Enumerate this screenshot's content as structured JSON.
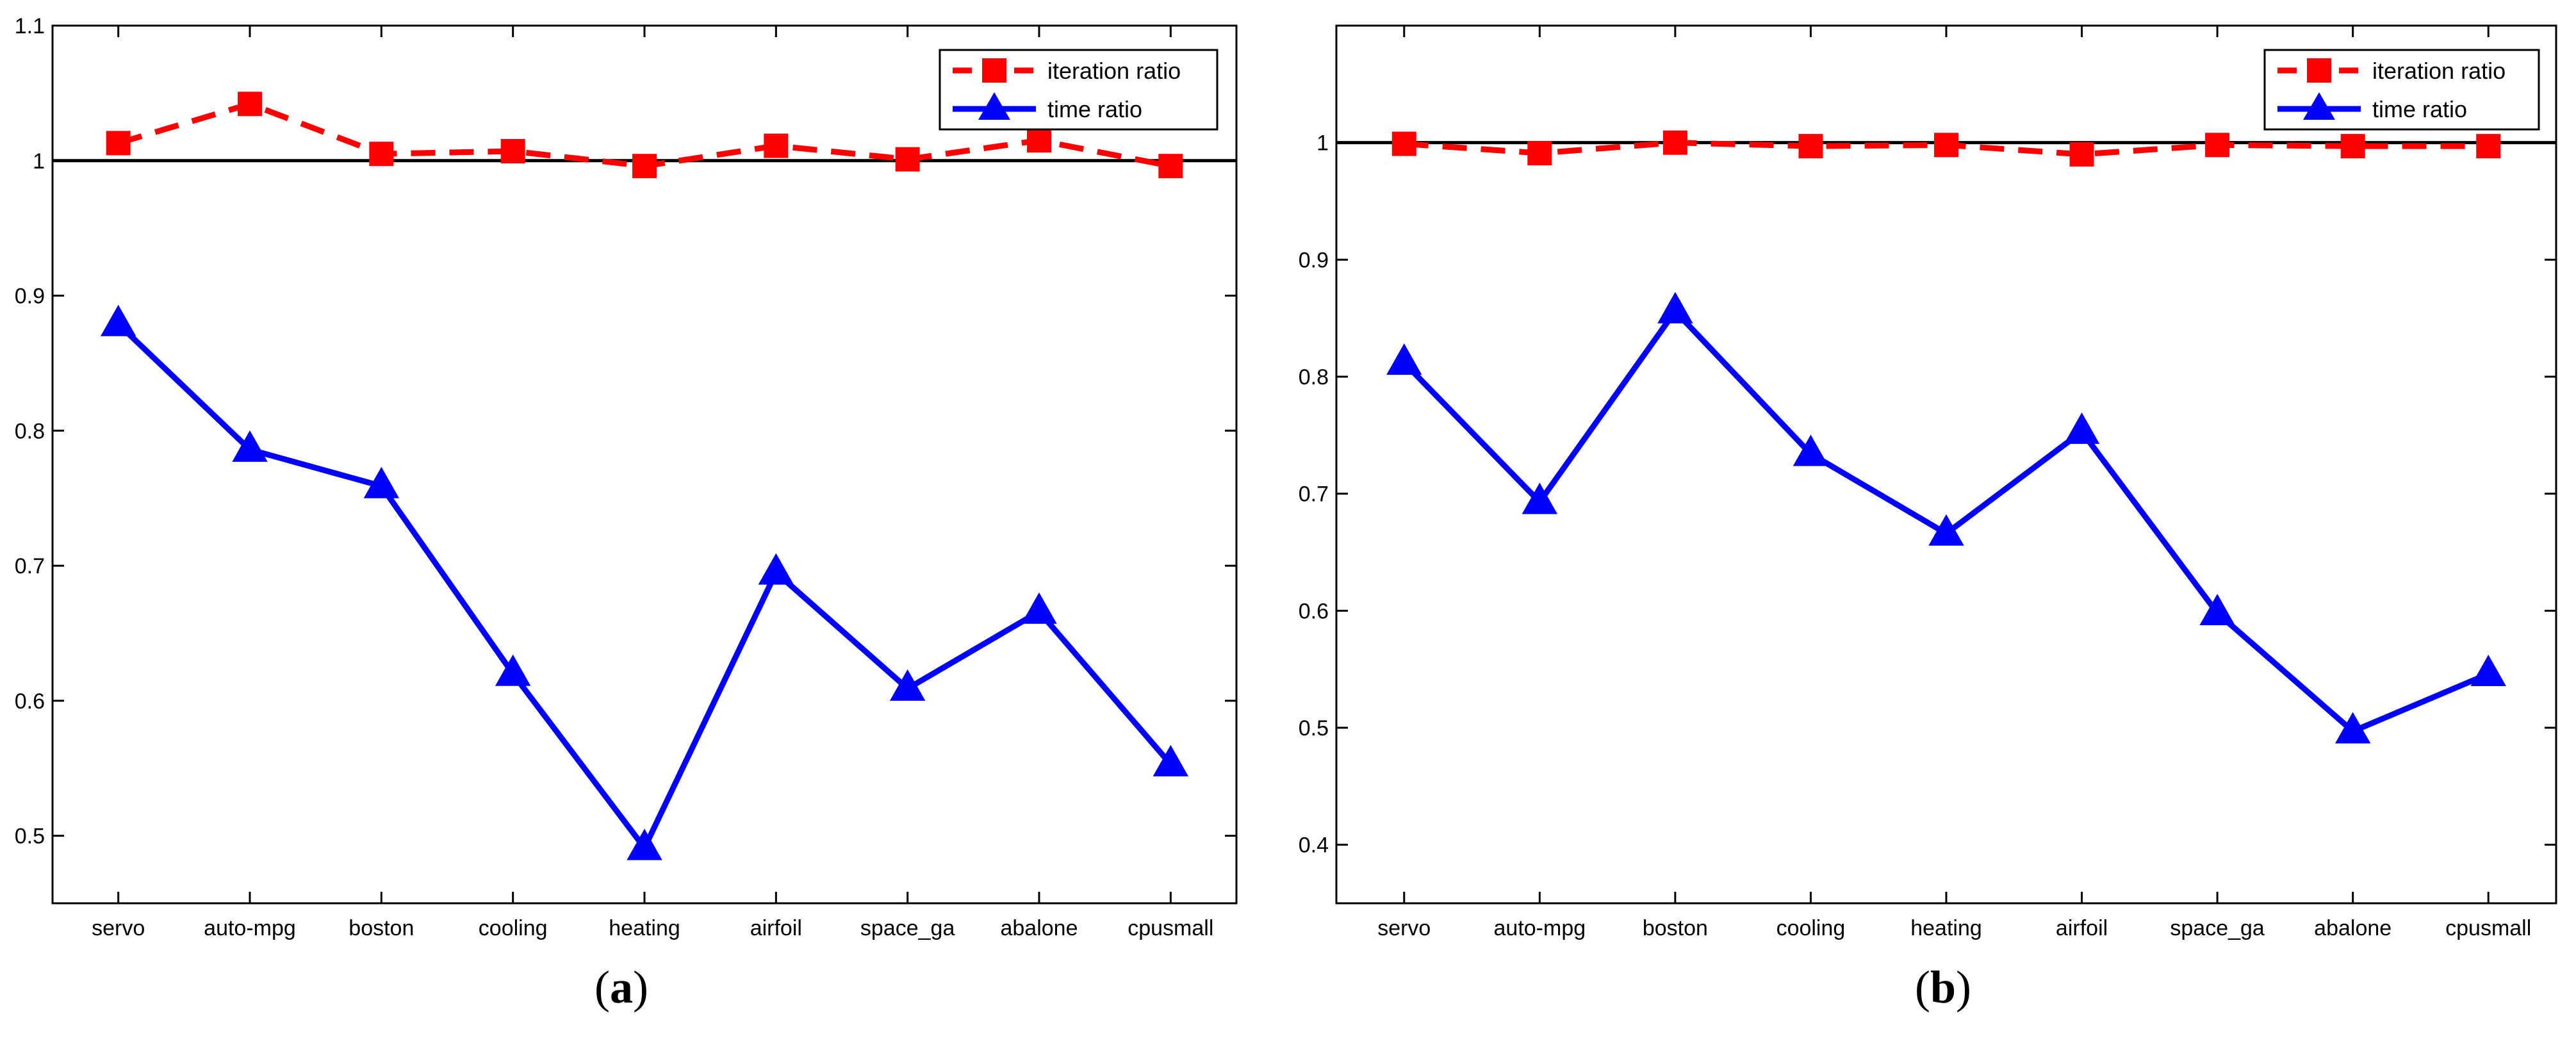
{
  "chart_data": [
    {
      "type": "line",
      "panel": "a",
      "categories": [
        "servo",
        "auto-mpg",
        "boston",
        "cooling",
        "heating",
        "airfoil",
        "space_ga",
        "abalone",
        "cpusmall"
      ],
      "ylim": [
        0.45,
        1.1
      ],
      "yticks": [
        0.5,
        0.6,
        0.7,
        0.8,
        0.9,
        1,
        1.1
      ],
      "ytick_labels": [
        "0.5",
        "0.6",
        "0.7",
        "0.8",
        "0.9",
        "1",
        "1.1"
      ],
      "reference_line": 1,
      "series": [
        {
          "name": "iteration ratio",
          "color": "#ff0000",
          "style": "dashed",
          "marker": "square",
          "values": [
            1.013,
            1.042,
            1.005,
            1.007,
            0.996,
            1.011,
            1.001,
            1.015,
            0.996
          ]
        },
        {
          "name": "time ratio",
          "color": "#0000ff",
          "style": "solid",
          "marker": "triangle",
          "values": [
            0.879,
            0.786,
            0.759,
            0.62,
            0.491,
            0.695,
            0.609,
            0.666,
            0.553
          ]
        }
      ],
      "legend_position": "top-right",
      "grid": false
    },
    {
      "type": "line",
      "panel": "b",
      "categories": [
        "servo",
        "auto-mpg",
        "boston",
        "cooling",
        "heating",
        "airfoil",
        "space_ga",
        "abalone",
        "cpusmall"
      ],
      "ylim": [
        0.35,
        1.1
      ],
      "yticks": [
        0.4,
        0.5,
        0.6,
        0.7,
        0.8,
        0.9,
        1
      ],
      "ytick_labels": [
        "0.4",
        "0.5",
        "0.6",
        "0.7",
        "0.8",
        "0.9",
        "1"
      ],
      "reference_line": 1,
      "series": [
        {
          "name": "iteration ratio",
          "color": "#ff0000",
          "style": "dashed",
          "marker": "square",
          "values": [
            0.999,
            0.991,
            1.0,
            0.997,
            0.998,
            0.99,
            0.998,
            0.997,
            0.997
          ]
        },
        {
          "name": "time ratio",
          "color": "#0000ff",
          "style": "solid",
          "marker": "triangle",
          "values": [
            0.812,
            0.693,
            0.856,
            0.734,
            0.666,
            0.753,
            0.598,
            0.497,
            0.546
          ]
        }
      ],
      "legend_position": "top-right",
      "grid": false
    }
  ],
  "labels": {
    "a": {
      "open": "(",
      "letter": "a",
      "close": ")"
    },
    "b": {
      "open": "(",
      "letter": "b",
      "close": ")"
    }
  }
}
